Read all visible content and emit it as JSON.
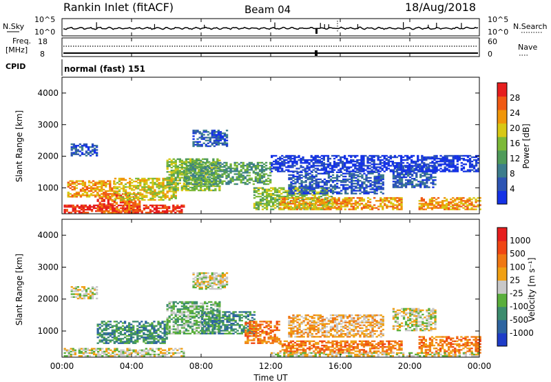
{
  "header": {
    "station": "Rankin Inlet (fitACF)",
    "beam": "Beam 04",
    "date": "18/Aug/2018"
  },
  "top_panels": {
    "nsky_label": "N.Sky",
    "nsky_ticks": [
      "10^5",
      "10^0"
    ],
    "nsearch_label": "N.Search",
    "nsearch_ticks": [
      "10^5",
      "10^0"
    ],
    "freq_label": "Freq.",
    "freq_unit": "[MHz]",
    "freq_ticks": [
      "18",
      "8"
    ],
    "nave_label": "Nave",
    "nave_ticks": [
      "60",
      "0"
    ],
    "cpid_label": "CPID",
    "cpid_value": "normal (fast) 151"
  },
  "chart_data": [
    {
      "type": "heatmap",
      "name": "power",
      "ylabel": "Slant Range [km]",
      "ylim": [
        180,
        4500
      ],
      "yticks": [
        "1000",
        "2000",
        "3000",
        "4000"
      ],
      "xlim_hours": [
        0,
        24
      ],
      "xticks": [
        "00:00",
        "04:00",
        "08:00",
        "12:00",
        "16:00",
        "20:00",
        "00:00"
      ],
      "colorbar": {
        "label": "Power [dB]",
        "ticks": [
          "4",
          "8",
          "12",
          "16",
          "20",
          "24",
          "28"
        ],
        "range": [
          0,
          30
        ],
        "colors": [
          "#1432e6",
          "#2d55b4",
          "#3c7d8c",
          "#4f9b5a",
          "#7cb937",
          "#d8c814",
          "#f0960a",
          "#f05a14",
          "#e61e1e"
        ]
      },
      "regions": [
        {
          "t": [
            0.1,
            7.0
          ],
          "r": [
            200,
            450
          ],
          "level": 8
        },
        {
          "t": [
            2.0,
            4.5
          ],
          "r": [
            200,
            800
          ],
          "level": 7
        },
        {
          "t": [
            0.3,
            3.0
          ],
          "r": [
            700,
            1200
          ],
          "level": 6
        },
        {
          "t": [
            3.0,
            6.5
          ],
          "r": [
            600,
            1300
          ],
          "level": 5
        },
        {
          "t": [
            6.0,
            9.0
          ],
          "r": [
            900,
            1900
          ],
          "level": 4
        },
        {
          "t": [
            7.0,
            12.0
          ],
          "r": [
            1100,
            1800
          ],
          "level": 3
        },
        {
          "t": [
            11.0,
            15.5
          ],
          "r": [
            300,
            1000
          ],
          "level": 4
        },
        {
          "t": [
            12.5,
            19.5
          ],
          "r": [
            300,
            700
          ],
          "level": 6
        },
        {
          "t": [
            13.0,
            18.5
          ],
          "r": [
            800,
            1500
          ],
          "level": 1
        },
        {
          "t": [
            19.0,
            21.5
          ],
          "r": [
            1000,
            1700
          ],
          "level": 1
        },
        {
          "t": [
            20.5,
            24.0
          ],
          "r": [
            300,
            700
          ],
          "level": 6
        },
        {
          "t": [
            0.5,
            2.0
          ],
          "r": [
            2000,
            2400
          ],
          "level": 1
        },
        {
          "t": [
            7.5,
            9.5
          ],
          "r": [
            2300,
            2800
          ],
          "level": 1
        },
        {
          "t": [
            12.0,
            24.0
          ],
          "r": [
            1500,
            2000
          ],
          "level": 0
        }
      ]
    },
    {
      "type": "heatmap",
      "name": "velocity",
      "ylabel": "Slant Range [km]",
      "ylim": [
        180,
        4500
      ],
      "yticks": [
        "1000",
        "2000",
        "3000",
        "4000"
      ],
      "xlim_hours": [
        0,
        24
      ],
      "xticks": [
        "00:00",
        "04:00",
        "08:00",
        "12:00",
        "16:00",
        "20:00",
        "00:00"
      ],
      "xlabel": "Time UT",
      "colorbar": {
        "label": "Velocity [m s⁻¹]",
        "ticks": [
          "1000",
          "500",
          "100",
          "25",
          "-25",
          "-100",
          "-500",
          "-1000"
        ],
        "range": [
          -1000,
          1000
        ],
        "colors": [
          "#1e3cc8",
          "#2d64a0",
          "#3c8c6e",
          "#5aaf3c",
          "#c8c8c8",
          "#f0a014",
          "#f07814",
          "#f04614",
          "#e61e1e"
        ]
      },
      "regions": [
        {
          "t": [
            0.1,
            7.0
          ],
          "r": [
            200,
            450
          ],
          "level": 4
        },
        {
          "t": [
            2.0,
            6.0
          ],
          "r": [
            600,
            1300
          ],
          "level": 2
        },
        {
          "t": [
            6.0,
            9.0
          ],
          "r": [
            900,
            1900
          ],
          "level": 3
        },
        {
          "t": [
            8.0,
            11.0
          ],
          "r": [
            900,
            1600
          ],
          "level": 2
        },
        {
          "t": [
            10.5,
            12.5
          ],
          "r": [
            600,
            1300
          ],
          "level": 6
        },
        {
          "t": [
            12.5,
            19.5
          ],
          "r": [
            300,
            700
          ],
          "level": 6
        },
        {
          "t": [
            13.0,
            18.5
          ],
          "r": [
            800,
            1500
          ],
          "level": 5
        },
        {
          "t": [
            19.0,
            21.5
          ],
          "r": [
            1000,
            1700
          ],
          "level": 4
        },
        {
          "t": [
            20.5,
            24.0
          ],
          "r": [
            300,
            800
          ],
          "level": 6
        },
        {
          "t": [
            0.5,
            2.0
          ],
          "r": [
            2000,
            2400
          ],
          "level": 4
        },
        {
          "t": [
            7.5,
            9.5
          ],
          "r": [
            2300,
            2800
          ],
          "level": 4
        },
        {
          "t": [
            12.0,
            24.0
          ],
          "r": [
            200,
            300
          ],
          "level": 4
        }
      ]
    }
  ]
}
